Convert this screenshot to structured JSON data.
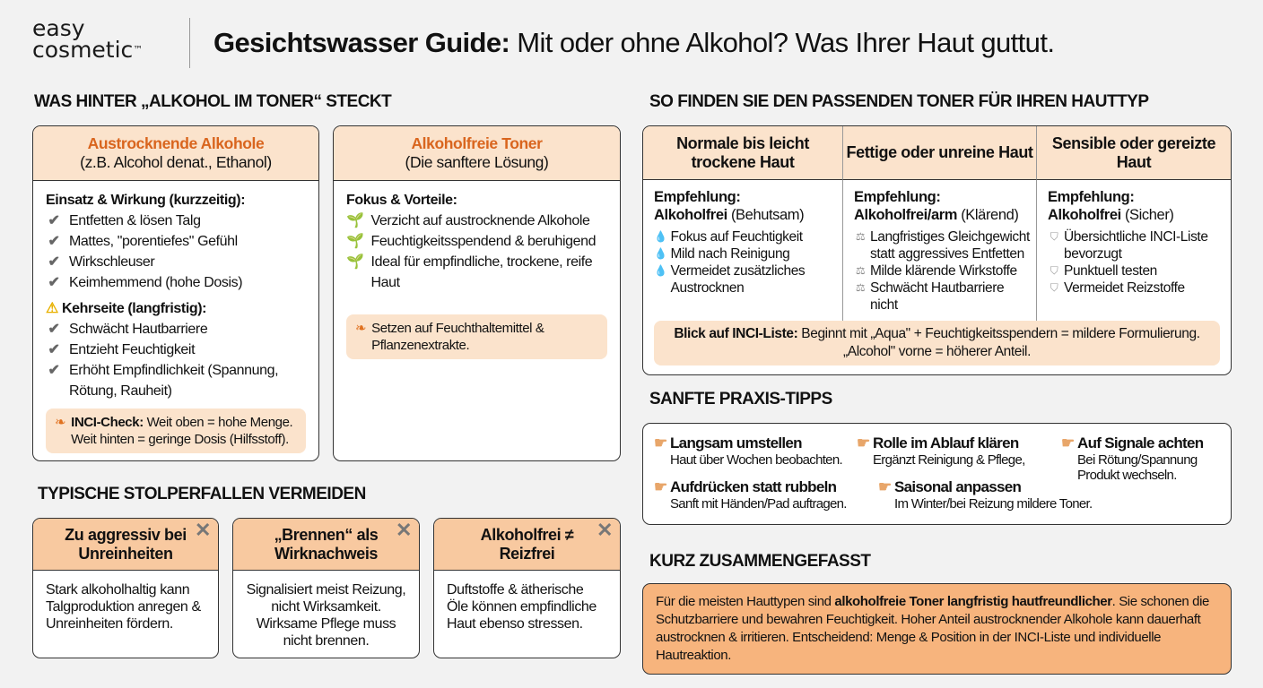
{
  "header": {
    "logo_line1": "easy",
    "logo_line2": "cosmetic",
    "logo_tm": "™",
    "title_bold": "Gesichtswasser Guide:",
    "title_rest": " Mit oder ohne Alkohol? Was Ihrer Haut guttut."
  },
  "section1": {
    "heading": "WAS HINTER „ALKOHOL IM TONER“ STECKT",
    "card_alcohol": {
      "title": "Austrocknende Alkohole",
      "subtitle": "(z.B. Alcohol denat., Ethanol)",
      "sub1": "Einsatz & Wirkung (kurzzeitig):",
      "items1": [
        "Entfetten & lösen Talg",
        "Mattes, \"porentiefes\" Gefühl",
        "Wirkschleuser",
        "Keimhemmend (hohe Dosis)"
      ],
      "sub2": "Kehrseite (langfristig):",
      "items2": [
        "Schwächt Hautbarriere",
        "Entzieht Feuchtigkeit",
        "Erhöht Empfindlichkeit (Spannung, Rötung, Rauheit)"
      ],
      "note_bold": "INCI-Check:",
      "note_text": " Weit oben = hohe Menge. Weit hinten = geringe Dosis (Hilfsstoff)."
    },
    "card_free": {
      "title": "Alkoholfreie Toner",
      "subtitle": "(Die sanftere Lösung)",
      "sub1": "Fokus & Vorteile:",
      "items1": [
        "Verzicht auf austrocknende Alkohole",
        "Feuchtigkeitsspendend & beruhigend",
        "Ideal für empfindliche, trockene, reife Haut"
      ],
      "note_text": "Setzen auf Feuchthaltemittel & Pflanzenextrakte."
    }
  },
  "section2": {
    "heading": "TYPISCHE STOLPERFALLEN VERMEIDEN",
    "cards": [
      {
        "title": "Zu aggressiv bei Unreinheiten",
        "text": "Stark alkoholhaltig kann Talgproduktion anregen & Unreinheiten fördern."
      },
      {
        "title": "„Brennen“ als Wirknachweis",
        "text": "Signalisiert meist Reizung, nicht Wirksamkeit. Wirksame Pflege muss nicht brennen."
      },
      {
        "title": "Alkoholfrei ≠ Reizfrei",
        "text": "Duftstoffe & ätherische Öle können empfindliche Haut ebenso stressen."
      }
    ]
  },
  "section3": {
    "heading": "SO FINDEN SIE DEN PASSENDEN TONER FÜR IHREN HAUTTYP",
    "columns": [
      {
        "header": "Normale bis leicht trockene Haut",
        "rec_label": "Empfehlung:",
        "rec_bold": "Alkoholfrei",
        "rec_rest": " (Behutsam)",
        "icon": "water-drop-icon",
        "items": [
          "Fokus auf Feuchtigkeit",
          "Mild nach Reinigung",
          "Vermeidet zusätzliches Austrocknen"
        ]
      },
      {
        "header": "Fettige oder unreine Haut",
        "rec_label": "Empfehlung:",
        "rec_bold": "Alkoholfrei/arm",
        "rec_rest": " (Klärend)",
        "icon": "balance-scale-icon",
        "items": [
          "Langfristiges Gleichgewicht statt aggressives Entfetten",
          "Milde klärende Wirkstoffe",
          "Schwächt Hautbarriere nicht"
        ]
      },
      {
        "header": "Sensible oder gereizte Haut",
        "rec_label": "Empfehlung:",
        "rec_bold": "Alkoholfrei",
        "rec_rest": " (Sicher)",
        "icon": "shield-icon",
        "items": [
          "Übersichtliche INCI-Liste bevorzugt",
          "Punktuell testen",
          "Vermeidet Reizstoffe"
        ]
      }
    ],
    "inci_bold": "Blick auf INCI-Liste:",
    "inci_text": " Beginnt mit „Aqua\" + Feuchtigkeitsspendern = mildere Formulierung. „Alcohol\" vorne = höherer Anteil."
  },
  "section4": {
    "heading": "SANFTE PRAXIS-TIPPS",
    "tips": [
      {
        "title": "Langsam umstellen",
        "text": "Haut über Wochen beobachten."
      },
      {
        "title": "Rolle im Ablauf klären",
        "text": "Ergänzt Reinigung & Pflege,"
      },
      {
        "title": "Auf Signale achten",
        "text": "Bei Rötung/Spannung Produkt wechseln."
      },
      {
        "title": "Aufdrücken statt rubbeln",
        "text": "Sanft mit Händen/Pad auftragen."
      },
      {
        "title": "Saisonal anpassen",
        "text": "Im Winter/bei Reizung mildere Toner."
      }
    ]
  },
  "section5": {
    "heading": "KURZ ZUSAMMENGEFASST",
    "text1": "Für die meisten Hauttypen sind ",
    "bold": "alkoholfreie Toner langfristig hautfreundlicher",
    "text2": ". Sie schonen die Schutzbarriere und bewahren Feuchtigkeit. Hoher Anteil austrocknender Alkohole kann dauerhaft austrocknen & irritieren. Entscheidend: Menge & Position in der INCI-Liste und individuelle Hautreaktion."
  },
  "colors": {
    "accent": "#d9651e",
    "header_bg": "#fbe3cc",
    "pitfall_header": "#f8c9a0",
    "summary_bg": "#f7b47d",
    "background": "#f2f2f2"
  }
}
